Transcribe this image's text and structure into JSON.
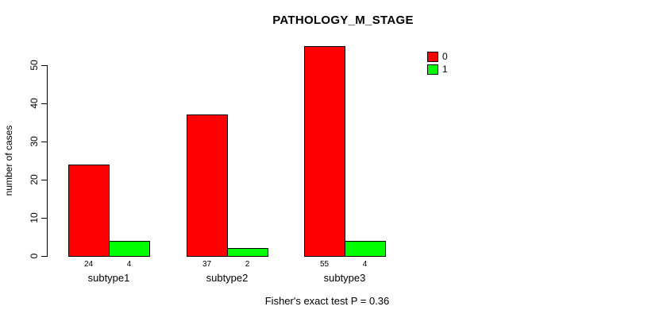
{
  "chart_data": {
    "type": "bar",
    "title": "PATHOLOGY_M_STAGE",
    "ylabel": "number of cases",
    "xlabel": "",
    "categories": [
      "subtype1",
      "subtype2",
      "subtype3"
    ],
    "series": [
      {
        "name": "0",
        "color": "#ff0000",
        "values": [
          24,
          37,
          55
        ]
      },
      {
        "name": "1",
        "color": "#00ff00",
        "values": [
          4,
          2,
          4
        ]
      }
    ],
    "yticks": [
      0,
      10,
      20,
      30,
      40,
      50
    ],
    "ylim": [
      0,
      57
    ],
    "grid": false,
    "legend_position": "top-right",
    "bar_value_labels_shown": true,
    "footer": "Fisher's exact test P = 0.36"
  }
}
